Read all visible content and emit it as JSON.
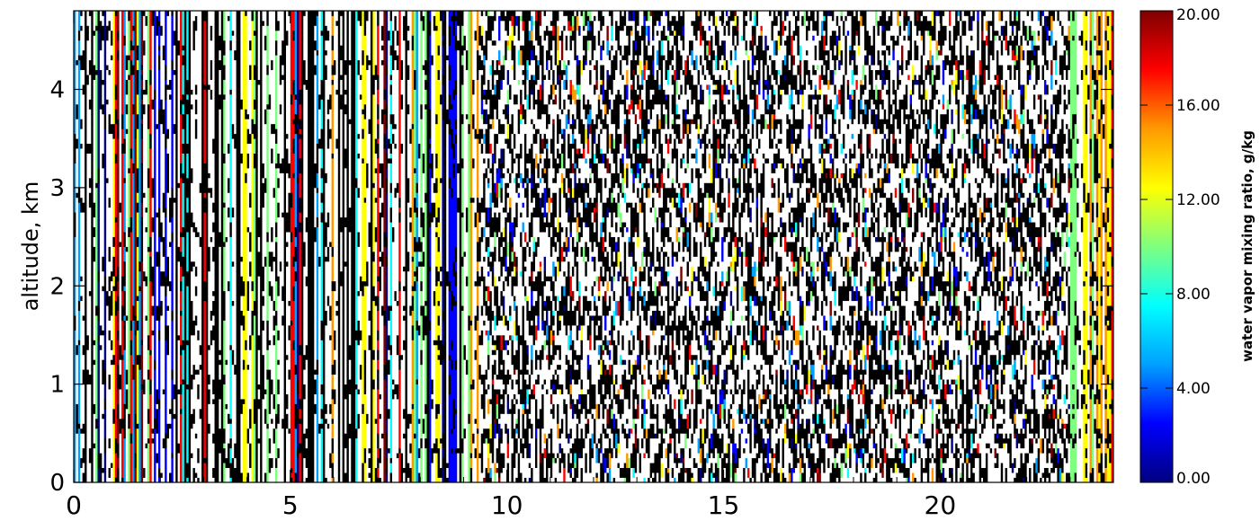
{
  "chart_data": {
    "type": "heatmap",
    "title": "",
    "xlabel": "",
    "ylabel": "altitude, km",
    "xlim": [
      0,
      24
    ],
    "ylim": [
      0,
      4.8
    ],
    "xticks": [
      0,
      5,
      10,
      15,
      20
    ],
    "yticks": [
      0,
      1,
      2,
      3,
      4
    ],
    "colorbar": {
      "label": "water vapor mixing ratio, g/kg",
      "range": [
        0,
        20
      ],
      "ticks": [
        "0.00",
        "4.00",
        "8.00",
        "12.00",
        "16.00",
        "20.00"
      ],
      "colormap": [
        "#00007f",
        "#0000ff",
        "#00a0ff",
        "#00ffff",
        "#7fff7f",
        "#ffff00",
        "#ff9900",
        "#ff0000",
        "#7f0000"
      ]
    },
    "missing_color": "#000000",
    "no_data_color": "#ffffff",
    "sections": [
      {
        "x_range": [
          0.0,
          9.4
        ],
        "pattern": "vertical stripes of nearly constant mixing ratio per time column, interspersed with black missing-value dashes"
      },
      {
        "x_range": [
          9.4,
          23.0
        ],
        "pattern": "dense noisy mix of black, white and scattered colored pixels"
      },
      {
        "x_range": [
          23.0,
          24.0
        ],
        "pattern": "yellow/orange vertical stripes with black dashes"
      }
    ]
  }
}
